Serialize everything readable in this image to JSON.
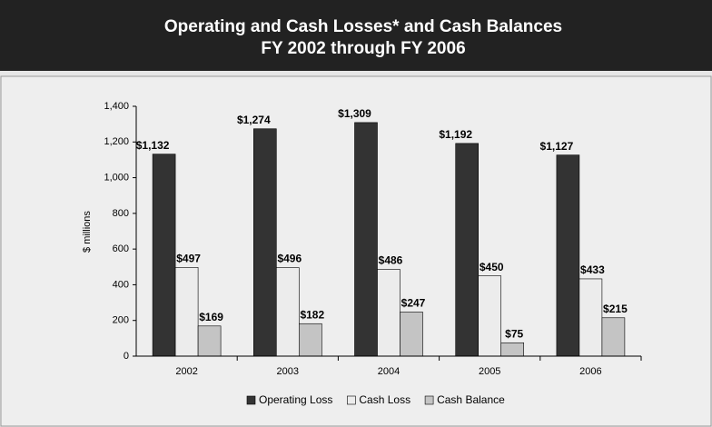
{
  "chart_data": {
    "type": "bar",
    "title": "Operating and Cash Losses* and Cash Balances",
    "subtitle": "FY 2002 through FY 2006",
    "y_label": "$ millions",
    "categories": [
      "2002",
      "2003",
      "2004",
      "2005",
      "2006"
    ],
    "series": [
      {
        "name": "Operating Loss",
        "color": "#333333",
        "values": [
          1132,
          1274,
          1309,
          1192,
          1127
        ],
        "value_labels": [
          "$1,132",
          "$1,274",
          "$1,309",
          "$1,192",
          "$1,127"
        ]
      },
      {
        "name": "Cash Loss",
        "color": "#ececec",
        "values": [
          497,
          496,
          486,
          450,
          433
        ],
        "value_labels": [
          "$497",
          "$496",
          "$486",
          "$450",
          "$433"
        ]
      },
      {
        "name": "Cash Balance",
        "color": "#c4c4c4",
        "values": [
          169,
          182,
          247,
          75,
          215
        ],
        "value_labels": [
          "$169",
          "$182",
          "$247",
          "$75",
          "$215"
        ]
      }
    ],
    "ylim": [
      0,
      1400
    ],
    "yticks": [
      0,
      200,
      400,
      600,
      800,
      {
        "value": 1000,
        "label": "1,000"
      },
      {
        "value": 1200,
        "label": "1,200"
      },
      {
        "value": 1400,
        "label": "1,400"
      }
    ],
    "legend": "bottom"
  }
}
